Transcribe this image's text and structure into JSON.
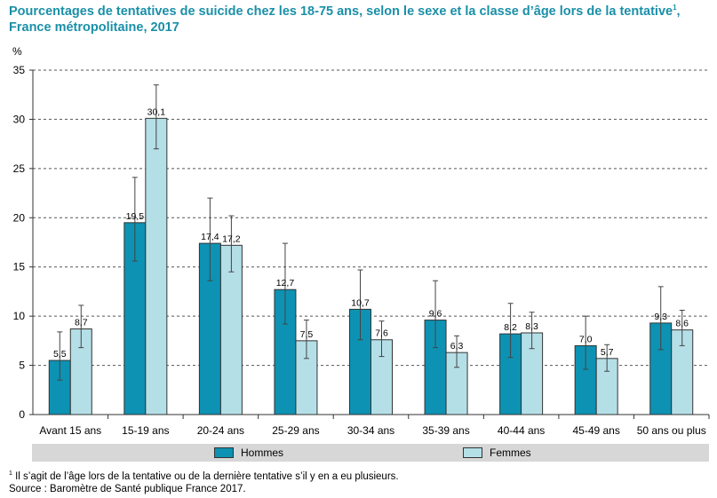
{
  "title": {
    "line1_text": "Pourcentages de tentatives de suicide chez les 18-75 ans, selon le sexe et la classe d’âge lors de la tentative",
    "line1_sup": "1",
    "line1_after": ",",
    "line2": "France métropolitaine, 2017"
  },
  "footnotes": {
    "note_sup": "1",
    "note": " Il s’agit de l’âge lors de la tentative ou de la dernière tentative s’il y en a eu plusieurs.",
    "source": "Source : Baromètre de Santé publique France 2017."
  },
  "chart_data": {
    "type": "bar",
    "title": "Pourcentages de tentatives de suicide chez les 18-75 ans, selon le sexe et la classe d’âge lors de la tentative",
    "ylabel": "%",
    "ylim": [
      0,
      35
    ],
    "yticks": [
      0,
      5,
      10,
      15,
      20,
      25,
      30,
      35
    ],
    "grid": true,
    "legend_position": "bottom",
    "categories": [
      "Avant 15 ans",
      "15-19 ans",
      "20-24 ans",
      "25-29 ans",
      "30-34 ans",
      "35-39 ans",
      "40-44 ans",
      "45-49 ans",
      "50 ans ou plus"
    ],
    "series": [
      {
        "name": "Hommes",
        "color": "#0d92b3",
        "values": [
          5.5,
          19.5,
          17.4,
          12.7,
          10.7,
          9.6,
          8.2,
          7.0,
          9.3
        ],
        "labels": [
          "5,5",
          "19,5",
          "17,4",
          "12,7",
          "10,7",
          "9,6",
          "8,2",
          "7,0",
          "9,3"
        ],
        "err_low": [
          3.5,
          15.6,
          13.6,
          9.2,
          7.6,
          6.8,
          5.8,
          4.6,
          6.6
        ],
        "err_high": [
          8.4,
          24.1,
          22.0,
          17.4,
          14.7,
          13.6,
          11.3,
          10.0,
          13.0
        ]
      },
      {
        "name": "Femmes",
        "color": "#b5dfe7",
        "values": [
          8.7,
          30.1,
          17.2,
          7.5,
          7.6,
          6.3,
          8.3,
          5.7,
          8.6
        ],
        "labels": [
          "8,7",
          "30,1",
          "17,2",
          "7,5",
          "7,6",
          "6,3",
          "8,3",
          "5,7",
          "8,6"
        ],
        "err_low": [
          6.8,
          27.0,
          14.5,
          5.7,
          5.9,
          4.8,
          6.7,
          4.4,
          7.0
        ],
        "err_high": [
          11.1,
          33.5,
          20.2,
          9.6,
          9.5,
          8.0,
          10.4,
          7.1,
          10.6
        ]
      }
    ]
  }
}
